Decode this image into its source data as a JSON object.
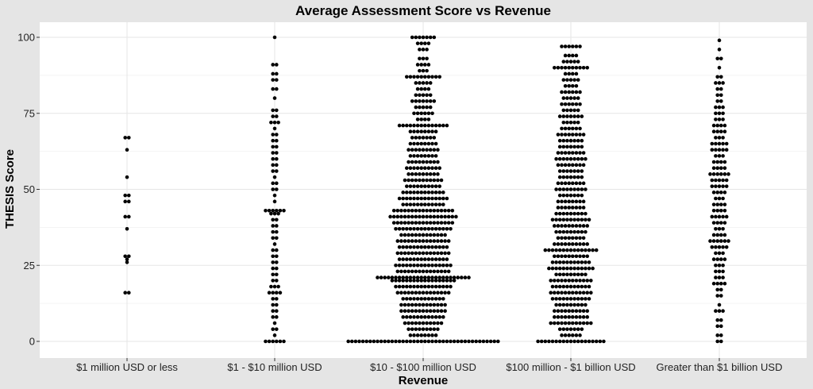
{
  "chart_data": {
    "type": "scatter",
    "subtype": "dotplot",
    "title": "Average Assessment Score vs Revenue",
    "xlabel": "Revenue",
    "ylabel": "THESIS Score",
    "ylim": [
      0,
      100
    ],
    "yticks": [
      0,
      25,
      50,
      75,
      100
    ],
    "grid": true,
    "marker_color": "#000000",
    "categories": [
      "$1 million USD or less",
      "$1 - $10 million USD",
      "$10 - $100 million USD",
      "$100 million - $1 billion USD",
      "Greater than $1 billion USD"
    ],
    "series": [
      {
        "category": "$1 million USD or less",
        "y_values": [
          67,
          67,
          63,
          54,
          48,
          48,
          46,
          46,
          41,
          41,
          37,
          28,
          28,
          27,
          26,
          16,
          16
        ]
      },
      {
        "category": "$1 - $10 million USD",
        "y_values_by_bin": [
          [
            0,
            6
          ],
          [
            2,
            1
          ],
          [
            4,
            2
          ],
          [
            6,
            1
          ],
          [
            8,
            2
          ],
          [
            10,
            2
          ],
          [
            12,
            2
          ],
          [
            14,
            2
          ],
          [
            16,
            4
          ],
          [
            18,
            3
          ],
          [
            20,
            2
          ],
          [
            22,
            2
          ],
          [
            24,
            2
          ],
          [
            26,
            2
          ],
          [
            28,
            2
          ],
          [
            30,
            2
          ],
          [
            32,
            1
          ],
          [
            34,
            2
          ],
          [
            36,
            2
          ],
          [
            38,
            2
          ],
          [
            40,
            2
          ],
          [
            42,
            3
          ],
          [
            43,
            6
          ],
          [
            46,
            1
          ],
          [
            48,
            1
          ],
          [
            50,
            2
          ],
          [
            52,
            2
          ],
          [
            54,
            1
          ],
          [
            56,
            2
          ],
          [
            58,
            2
          ],
          [
            60,
            2
          ],
          [
            62,
            2
          ],
          [
            64,
            2
          ],
          [
            66,
            2
          ],
          [
            68,
            2
          ],
          [
            70,
            1
          ],
          [
            72,
            3
          ],
          [
            74,
            2
          ],
          [
            76,
            2
          ],
          [
            80,
            1
          ],
          [
            83,
            2
          ],
          [
            86,
            2
          ],
          [
            88,
            2
          ],
          [
            91,
            2
          ],
          [
            100,
            1
          ]
        ]
      },
      {
        "category": "$10 - $100 million USD",
        "y_values_by_bin": [
          [
            0,
            42
          ],
          [
            2,
            8
          ],
          [
            4,
            9
          ],
          [
            6,
            11
          ],
          [
            8,
            12
          ],
          [
            10,
            13
          ],
          [
            12,
            13
          ],
          [
            14,
            12
          ],
          [
            16,
            15
          ],
          [
            18,
            16
          ],
          [
            20,
            18
          ],
          [
            21,
            26
          ],
          [
            23,
            15
          ],
          [
            25,
            16
          ],
          [
            27,
            14
          ],
          [
            29,
            15
          ],
          [
            31,
            14
          ],
          [
            33,
            15
          ],
          [
            35,
            13
          ],
          [
            37,
            16
          ],
          [
            39,
            17
          ],
          [
            41,
            19
          ],
          [
            43,
            17
          ],
          [
            45,
            12
          ],
          [
            47,
            14
          ],
          [
            49,
            12
          ],
          [
            51,
            10
          ],
          [
            53,
            11
          ],
          [
            55,
            9
          ],
          [
            57,
            10
          ],
          [
            59,
            9
          ],
          [
            61,
            8
          ],
          [
            63,
            9
          ],
          [
            65,
            8
          ],
          [
            67,
            7
          ],
          [
            69,
            8
          ],
          [
            71,
            14
          ],
          [
            73,
            4
          ],
          [
            75,
            6
          ],
          [
            77,
            5
          ],
          [
            79,
            7
          ],
          [
            81,
            5
          ],
          [
            83,
            4
          ],
          [
            85,
            5
          ],
          [
            87,
            10
          ],
          [
            89,
            3
          ],
          [
            91,
            4
          ],
          [
            93,
            3
          ],
          [
            96,
            3
          ],
          [
            98,
            4
          ],
          [
            100,
            7
          ]
        ]
      },
      {
        "category": "$100 million - $1 billion USD",
        "y_values_by_bin": [
          [
            0,
            19
          ],
          [
            2,
            6
          ],
          [
            4,
            7
          ],
          [
            6,
            12
          ],
          [
            8,
            10
          ],
          [
            10,
            10
          ],
          [
            12,
            9
          ],
          [
            14,
            11
          ],
          [
            16,
            12
          ],
          [
            18,
            11
          ],
          [
            20,
            12
          ],
          [
            22,
            9
          ],
          [
            24,
            13
          ],
          [
            26,
            11
          ],
          [
            28,
            10
          ],
          [
            30,
            15
          ],
          [
            32,
            10
          ],
          [
            34,
            8
          ],
          [
            36,
            9
          ],
          [
            38,
            10
          ],
          [
            40,
            11
          ],
          [
            42,
            9
          ],
          [
            44,
            8
          ],
          [
            46,
            8
          ],
          [
            48,
            7
          ],
          [
            50,
            9
          ],
          [
            52,
            8
          ],
          [
            54,
            7
          ],
          [
            56,
            7
          ],
          [
            58,
            8
          ],
          [
            60,
            9
          ],
          [
            62,
            8
          ],
          [
            64,
            7
          ],
          [
            66,
            7
          ],
          [
            68,
            8
          ],
          [
            70,
            6
          ],
          [
            72,
            5
          ],
          [
            74,
            7
          ],
          [
            76,
            5
          ],
          [
            78,
            6
          ],
          [
            80,
            5
          ],
          [
            82,
            6
          ],
          [
            84,
            4
          ],
          [
            86,
            5
          ],
          [
            88,
            4
          ],
          [
            90,
            10
          ],
          [
            92,
            5
          ],
          [
            94,
            4
          ],
          [
            97,
            6
          ]
        ]
      },
      {
        "category": "Greater than $1 billion USD",
        "y_values_by_bin": [
          [
            0,
            2
          ],
          [
            2,
            2
          ],
          [
            5,
            2
          ],
          [
            7,
            2
          ],
          [
            10,
            3
          ],
          [
            12,
            1
          ],
          [
            15,
            2
          ],
          [
            17,
            2
          ],
          [
            19,
            4
          ],
          [
            21,
            3
          ],
          [
            23,
            3
          ],
          [
            25,
            3
          ],
          [
            27,
            4
          ],
          [
            29,
            3
          ],
          [
            31,
            5
          ],
          [
            33,
            6
          ],
          [
            35,
            4
          ],
          [
            37,
            3
          ],
          [
            39,
            4
          ],
          [
            41,
            5
          ],
          [
            43,
            4
          ],
          [
            45,
            4
          ],
          [
            47,
            3
          ],
          [
            49,
            4
          ],
          [
            51,
            5
          ],
          [
            53,
            5
          ],
          [
            55,
            6
          ],
          [
            57,
            4
          ],
          [
            59,
            4
          ],
          [
            61,
            3
          ],
          [
            63,
            5
          ],
          [
            65,
            5
          ],
          [
            67,
            3
          ],
          [
            69,
            4
          ],
          [
            71,
            4
          ],
          [
            73,
            3
          ],
          [
            75,
            3
          ],
          [
            77,
            3
          ],
          [
            79,
            2
          ],
          [
            81,
            2
          ],
          [
            83,
            2
          ],
          [
            85,
            3
          ],
          [
            87,
            2
          ],
          [
            90,
            1
          ],
          [
            93,
            2
          ],
          [
            96,
            1
          ],
          [
            99,
            1
          ]
        ]
      }
    ]
  }
}
